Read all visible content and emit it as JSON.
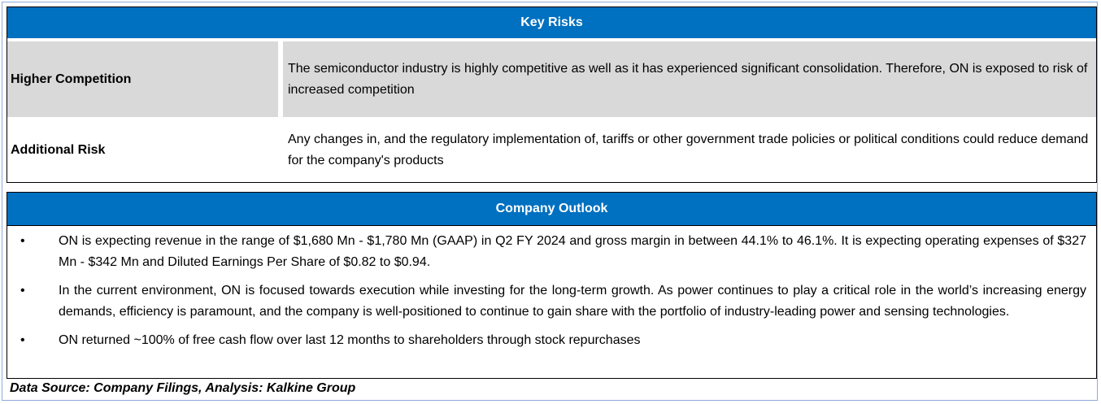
{
  "key_risks": {
    "title": "Key Risks",
    "rows": [
      {
        "label": "Higher Competition",
        "text": "The semiconductor industry is highly competitive as well as it has experienced significant consolidation. Therefore, ON is exposed to risk of increased competition"
      },
      {
        "label": "Additional Risk",
        "text": "Any changes in, and the regulatory implementation of, tariffs or other government trade policies or political conditions could reduce demand for the company's products"
      }
    ]
  },
  "company_outlook": {
    "title": "Company Outlook",
    "bullets": [
      "ON is expecting revenue in the range of $1,680 Mn - $1,780 Mn (GAAP) in Q2 FY 2024 and gross margin in between 44.1% to 46.1%. It is expecting operating expenses of $327 Mn - $342 Mn and Diluted Earnings Per Share of $0.82 to $0.94.",
      "In the current environment, ON is focused towards execution while investing for the long-term growth. As power continues to play a critical role in the world’s increasing energy demands, efficiency is paramount, and the company is well-positioned to continue to gain share with the portfolio of industry-leading power and sensing technologies.",
      "ON returned ~100% of free cash flow over last 12 months to shareholders through stock repurchases"
    ]
  },
  "source": "Data Source: Company Filings, Analysis: Kalkine Group"
}
